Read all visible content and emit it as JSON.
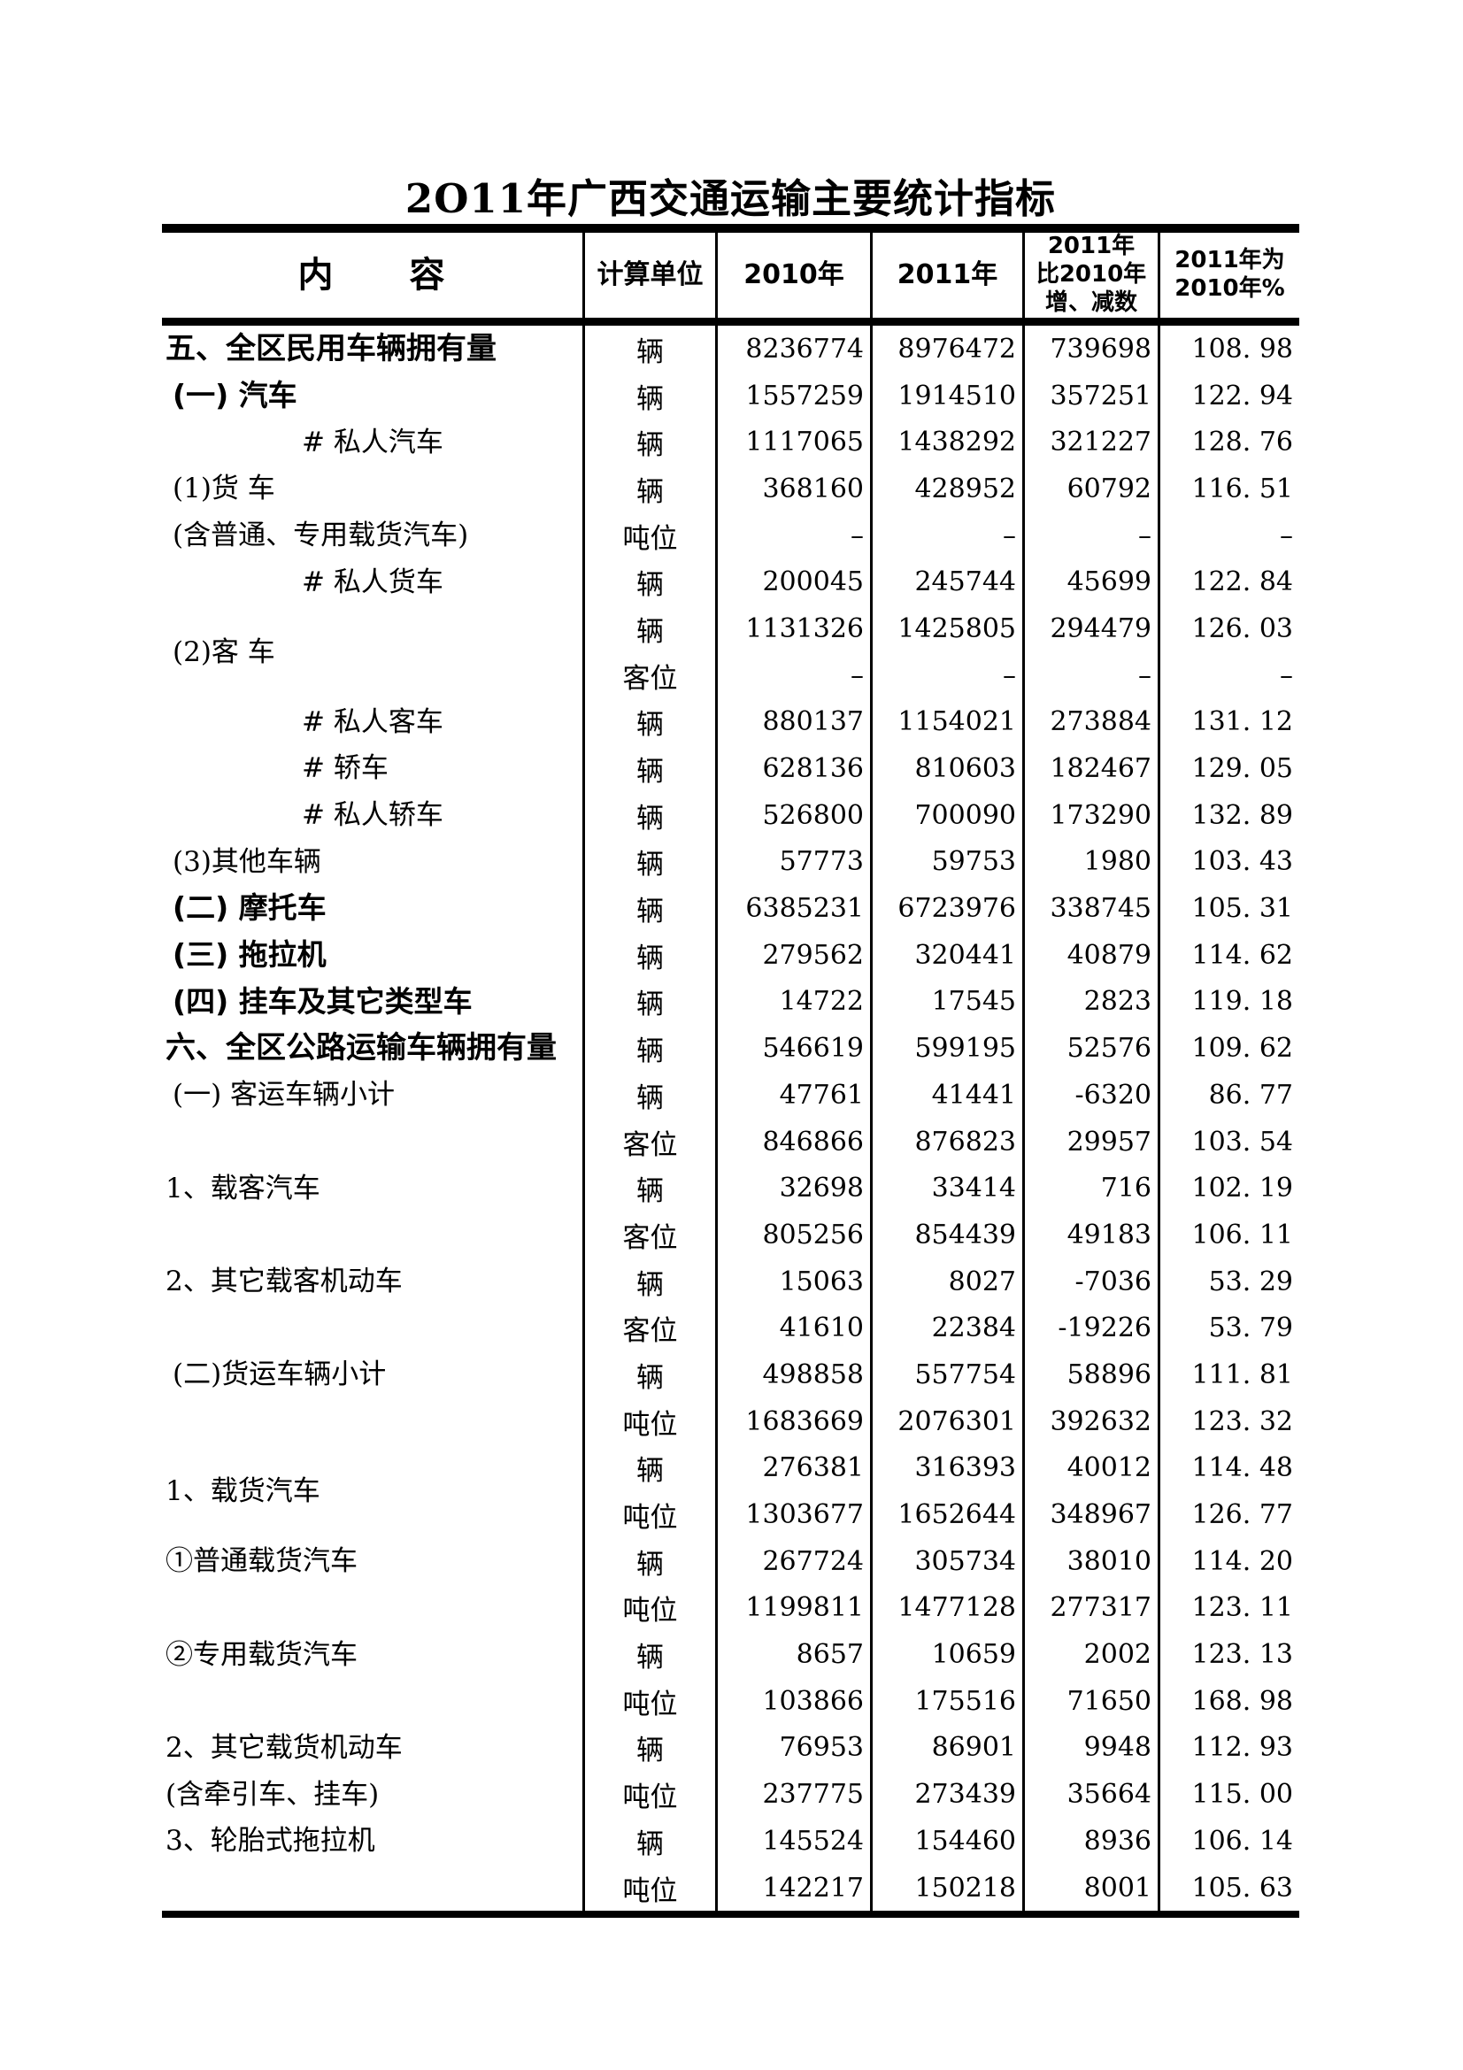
{
  "title": "2O11年广西交通运输主要统计指标",
  "table": {
    "header": {
      "content": "内　　容",
      "unit": "计算单位",
      "y2010": "2010年",
      "y2011": "2011年",
      "diff": "2011年\n比2010年\n增、减数",
      "pct": "2011年为\n2010年%"
    },
    "rows": [
      {
        "label": "五、全区民用车辆拥有量",
        "bold": true,
        "indent": 0,
        "align": "first",
        "lines": [
          {
            "unit": "辆",
            "v2010": "8236774",
            "v2011": "8976472",
            "diff": "739698",
            "pct": "108. 98"
          }
        ]
      },
      {
        "label": "(一) 汽车",
        "bold": true,
        "indent": 1,
        "align": "first",
        "lines": [
          {
            "unit": "辆",
            "v2010": "1557259",
            "v2011": "1914510",
            "diff": "357251",
            "pct": "122. 94"
          }
        ]
      },
      {
        "label": "# 私人汽车",
        "bold": false,
        "indent": 2,
        "align": "first",
        "lines": [
          {
            "unit": "辆",
            "v2010": "1117065",
            "v2011": "1438292",
            "diff": "321227",
            "pct": "128. 76"
          }
        ]
      },
      {
        "label": "(1)货 车",
        "label2": "(含普通、专用载货汽车)",
        "bold": false,
        "indent": 1,
        "align": "split",
        "lines": [
          {
            "unit": "辆",
            "v2010": "368160",
            "v2011": "428952",
            "diff": "60792",
            "pct": "116. 51"
          },
          {
            "unit": "吨位",
            "v2010": "–",
            "v2011": "–",
            "diff": "–",
            "pct": "–"
          }
        ]
      },
      {
        "label": "# 私人货车",
        "bold": false,
        "indent": 2,
        "align": "first",
        "lines": [
          {
            "unit": "辆",
            "v2010": "200045",
            "v2011": "245744",
            "diff": "45699",
            "pct": "122. 84"
          }
        ]
      },
      {
        "label": "(2)客 车",
        "bold": false,
        "indent": 1,
        "align": "center",
        "lines": [
          {
            "unit": "辆",
            "v2010": "1131326",
            "v2011": "1425805",
            "diff": "294479",
            "pct": "126. 03"
          },
          {
            "unit": "客位",
            "v2010": "–",
            "v2011": "–",
            "diff": "–",
            "pct": "–"
          }
        ]
      },
      {
        "label": "# 私人客车",
        "bold": false,
        "indent": 2,
        "align": "first",
        "lines": [
          {
            "unit": "辆",
            "v2010": "880137",
            "v2011": "1154021",
            "diff": "273884",
            "pct": "131. 12"
          }
        ]
      },
      {
        "label": "# 轿车",
        "bold": false,
        "indent": 2,
        "align": "first",
        "lines": [
          {
            "unit": "辆",
            "v2010": "628136",
            "v2011": "810603",
            "diff": "182467",
            "pct": "129. 05"
          }
        ]
      },
      {
        "label": "# 私人轿车",
        "bold": false,
        "indent": 2,
        "align": "first",
        "lines": [
          {
            "unit": "辆",
            "v2010": "526800",
            "v2011": "700090",
            "diff": "173290",
            "pct": "132. 89"
          }
        ]
      },
      {
        "label": "(3)其他车辆",
        "bold": false,
        "indent": 1,
        "align": "first",
        "lines": [
          {
            "unit": "辆",
            "v2010": "57773",
            "v2011": "59753",
            "diff": "1980",
            "pct": "103. 43"
          }
        ]
      },
      {
        "label": "(二) 摩托车",
        "bold": true,
        "indent": 1,
        "align": "first",
        "lines": [
          {
            "unit": "辆",
            "v2010": "6385231",
            "v2011": "6723976",
            "diff": "338745",
            "pct": "105. 31"
          }
        ]
      },
      {
        "label": "(三) 拖拉机",
        "bold": true,
        "indent": 1,
        "align": "first",
        "lines": [
          {
            "unit": "辆",
            "v2010": "279562",
            "v2011": "320441",
            "diff": "40879",
            "pct": "114. 62"
          }
        ]
      },
      {
        "label": "(四) 挂车及其它类型车",
        "bold": true,
        "indent": 1,
        "align": "first",
        "lines": [
          {
            "unit": "辆",
            "v2010": "14722",
            "v2011": "17545",
            "diff": "2823",
            "pct": "119. 18"
          }
        ]
      },
      {
        "label": "六、全区公路运输车辆拥有量",
        "bold": true,
        "indent": 0,
        "align": "first",
        "lines": [
          {
            "unit": "辆",
            "v2010": "546619",
            "v2011": "599195",
            "diff": "52576",
            "pct": "109. 62"
          }
        ]
      },
      {
        "label": "(一) 客运车辆小计",
        "bold": false,
        "indent": 1,
        "align": "first",
        "lines": [
          {
            "unit": "辆",
            "v2010": "47761",
            "v2011": "41441",
            "diff": "-6320",
            "pct": "86. 77"
          },
          {
            "unit": "客位",
            "v2010": "846866",
            "v2011": "876823",
            "diff": "29957",
            "pct": "103. 54"
          }
        ]
      },
      {
        "label": "1、载客汽车",
        "bold": false,
        "indent": 0,
        "align": "first",
        "lines": [
          {
            "unit": "辆",
            "v2010": "32698",
            "v2011": "33414",
            "diff": "716",
            "pct": "102. 19"
          },
          {
            "unit": "客位",
            "v2010": "805256",
            "v2011": "854439",
            "diff": "49183",
            "pct": "106. 11"
          }
        ]
      },
      {
        "label": "2、其它载客机动车",
        "bold": false,
        "indent": 0,
        "align": "first",
        "lines": [
          {
            "unit": "辆",
            "v2010": "15063",
            "v2011": "8027",
            "diff": "-7036",
            "pct": "53. 29"
          },
          {
            "unit": "客位",
            "v2010": "41610",
            "v2011": "22384",
            "diff": "-19226",
            "pct": "53. 79"
          }
        ]
      },
      {
        "label": "(二)货运车辆小计",
        "bold": false,
        "indent": 1,
        "align": "first",
        "lines": [
          {
            "unit": "辆",
            "v2010": "498858",
            "v2011": "557754",
            "diff": "58896",
            "pct": "111. 81"
          },
          {
            "unit": "吨位",
            "v2010": "1683669",
            "v2011": "2076301",
            "diff": "392632",
            "pct": "123. 32"
          }
        ]
      },
      {
        "label": "1、载货汽车",
        "bold": false,
        "indent": 0,
        "align": "center",
        "lines": [
          {
            "unit": "辆",
            "v2010": "276381",
            "v2011": "316393",
            "diff": "40012",
            "pct": "114. 48"
          },
          {
            "unit": "吨位",
            "v2010": "1303677",
            "v2011": "1652644",
            "diff": "348967",
            "pct": "126. 77"
          }
        ]
      },
      {
        "label": "①普通载货汽车",
        "bold": false,
        "indent": 0,
        "align": "first",
        "lines": [
          {
            "unit": "辆",
            "v2010": "267724",
            "v2011": "305734",
            "diff": "38010",
            "pct": "114. 20"
          },
          {
            "unit": "吨位",
            "v2010": "1199811",
            "v2011": "1477128",
            "diff": "277317",
            "pct": "123. 11"
          }
        ]
      },
      {
        "label": "②专用载货汽车",
        "bold": false,
        "indent": 0,
        "align": "first",
        "lines": [
          {
            "unit": "辆",
            "v2010": "8657",
            "v2011": "10659",
            "diff": "2002",
            "pct": "123. 13"
          },
          {
            "unit": "吨位",
            "v2010": "103866",
            "v2011": "175516",
            "diff": "71650",
            "pct": "168. 98"
          }
        ]
      },
      {
        "label": "2、其它载货机动车",
        "label2": "(含牵引车、挂车)",
        "bold": false,
        "indent": 0,
        "align": "split",
        "lines": [
          {
            "unit": "辆",
            "v2010": "76953",
            "v2011": "86901",
            "diff": "9948",
            "pct": "112. 93"
          },
          {
            "unit": "吨位",
            "v2010": "237775",
            "v2011": "273439",
            "diff": "35664",
            "pct": "115. 00"
          }
        ]
      },
      {
        "label": "3、轮胎式拖拉机",
        "bold": false,
        "indent": 0,
        "align": "first",
        "lines": [
          {
            "unit": "辆",
            "v2010": "145524",
            "v2011": "154460",
            "diff": "8936",
            "pct": "106. 14"
          },
          {
            "unit": "吨位",
            "v2010": "142217",
            "v2011": "150218",
            "diff": "8001",
            "pct": "105. 63"
          }
        ]
      }
    ]
  }
}
